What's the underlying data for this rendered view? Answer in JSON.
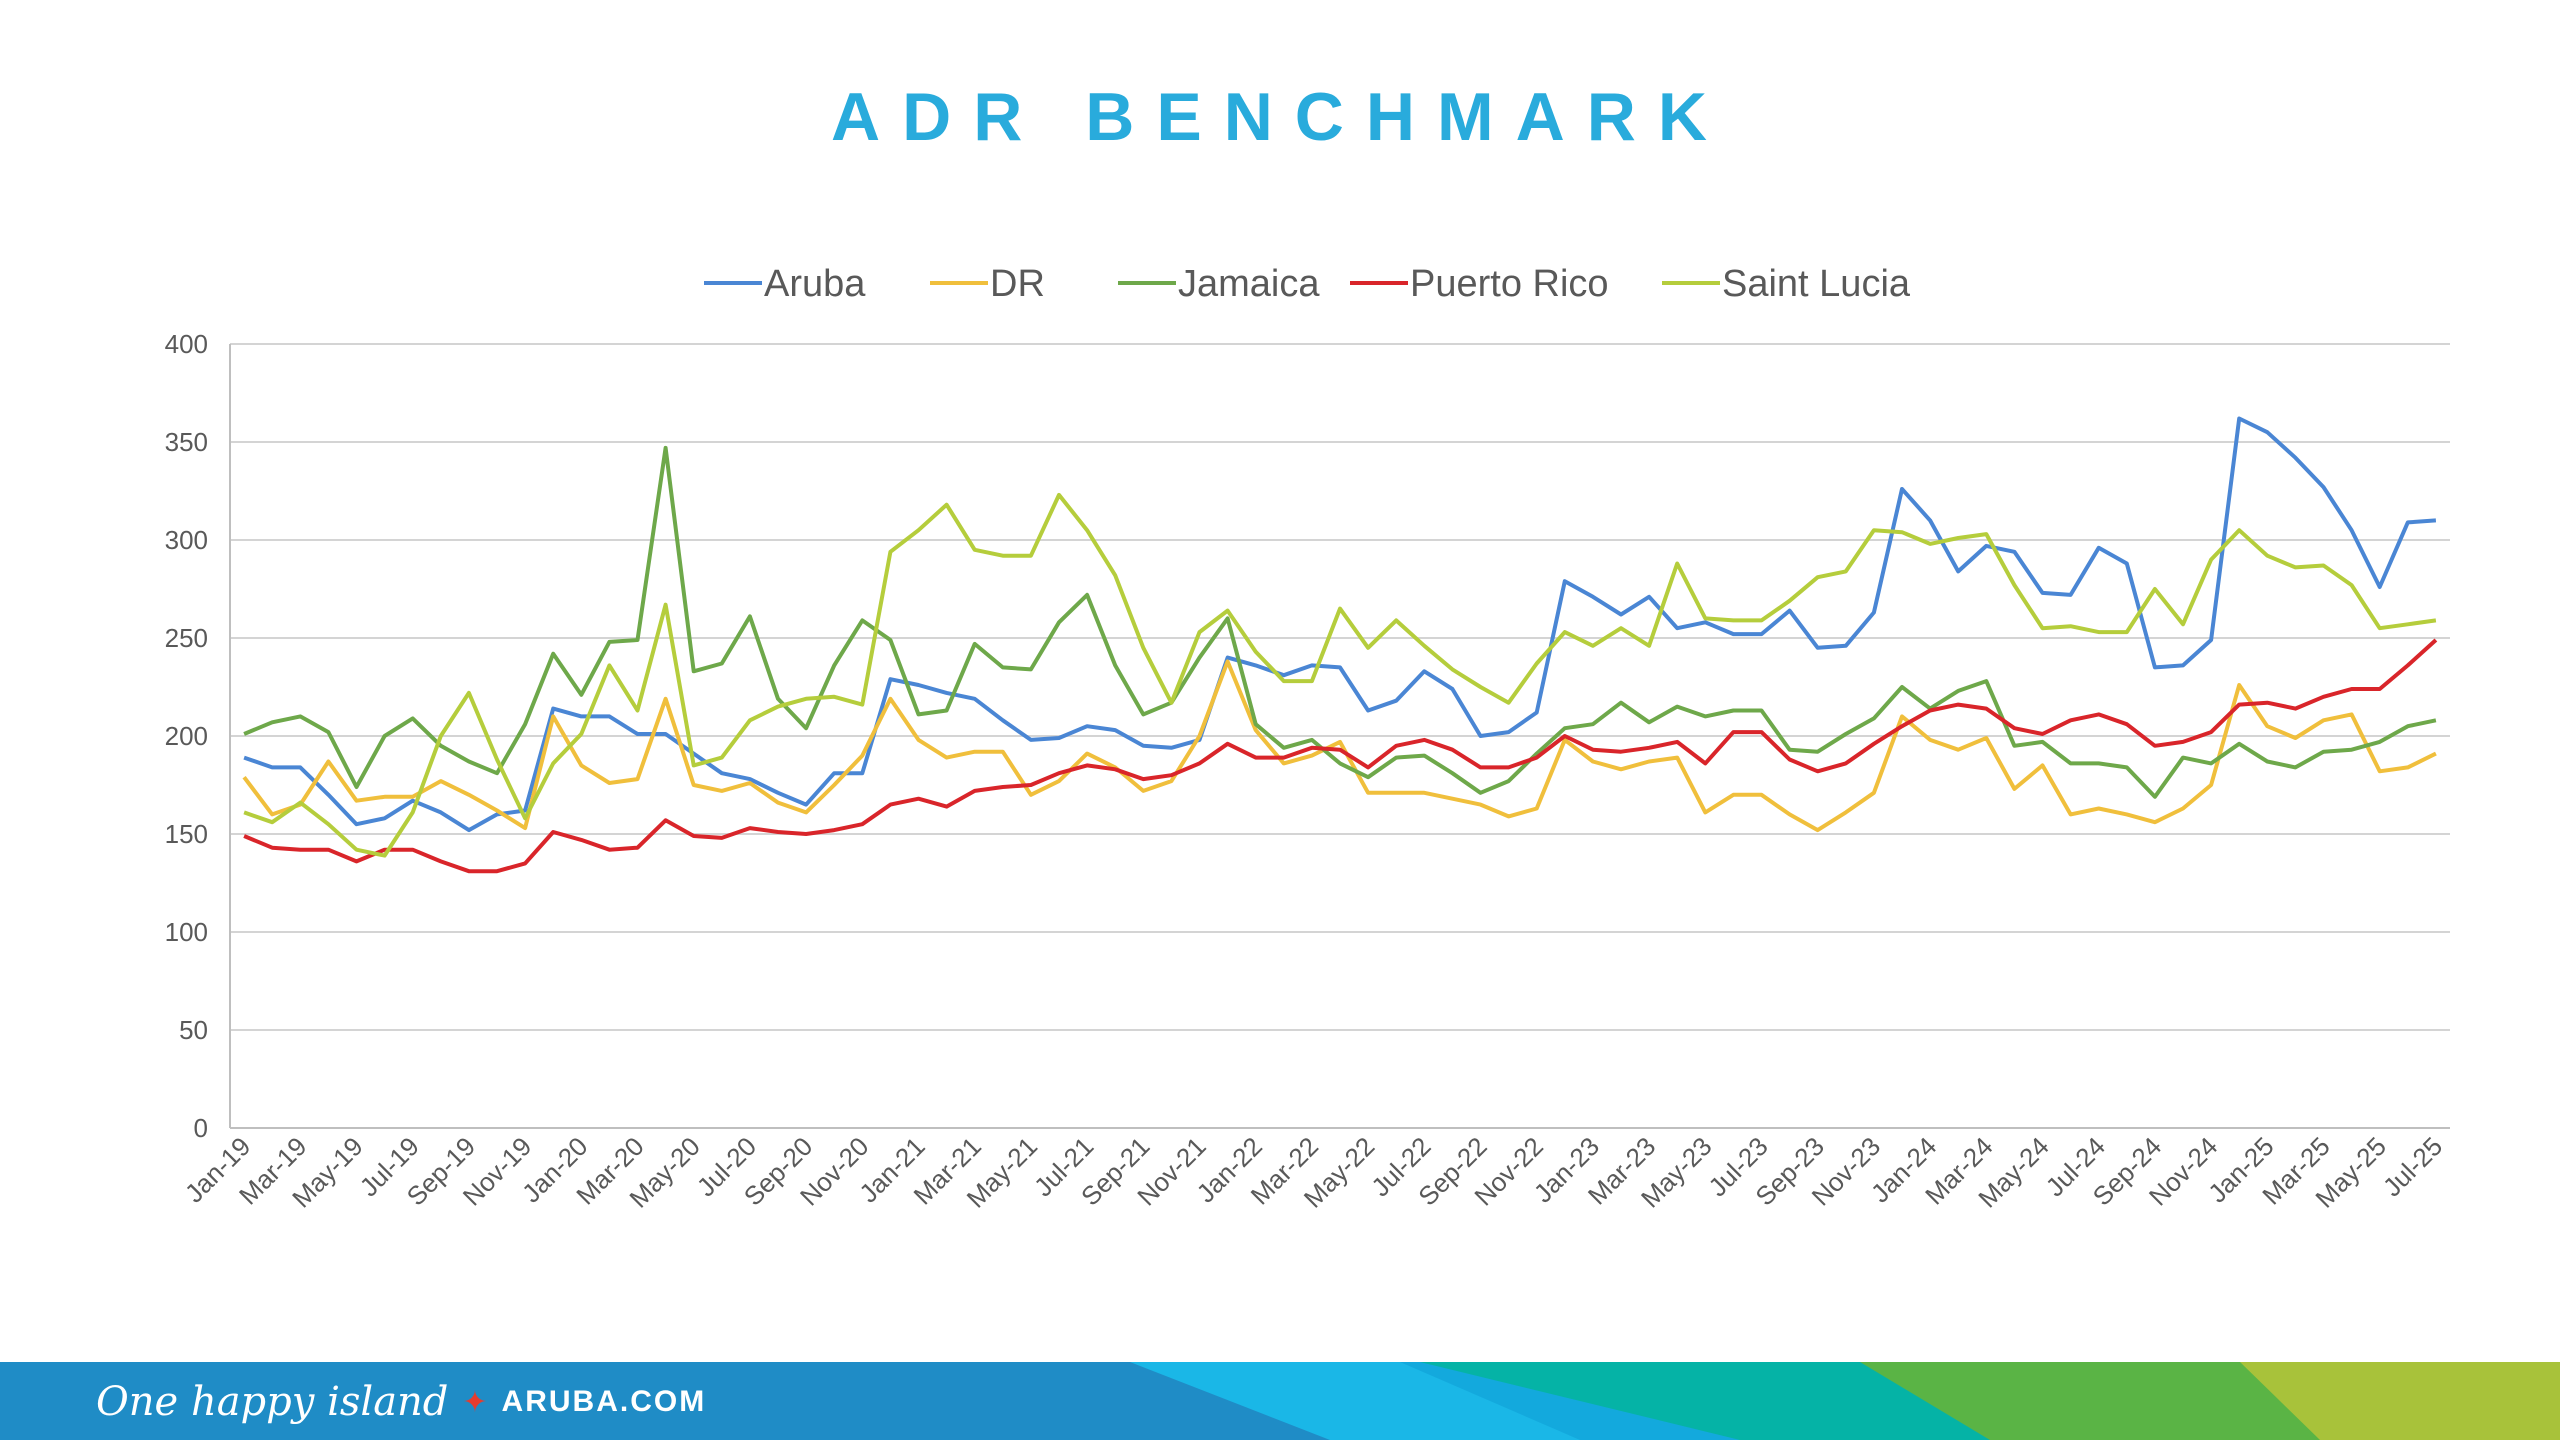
{
  "title": "ADR BENCHMARK",
  "footer": {
    "tagline": "One happy island",
    "site": "ARUBA.COM"
  },
  "chart_data": {
    "type": "line",
    "title": "ADR BENCHMARK",
    "xlabel": "",
    "ylabel": "",
    "ylim": [
      0,
      400
    ],
    "yticks": [
      0,
      50,
      100,
      150,
      200,
      250,
      300,
      350,
      400
    ],
    "grid": true,
    "legend": "top",
    "x_tick_labels": [
      "Jan-19",
      "Mar-19",
      "May-19",
      "Jul-19",
      "Sep-19",
      "Nov-19",
      "Jan-20",
      "Mar-20",
      "May-20",
      "Jul-20",
      "Sep-20",
      "Nov-20",
      "Jan-21",
      "Mar-21",
      "May-21",
      "Jul-21",
      "Sep-21",
      "Nov-21",
      "Jan-22",
      "Mar-22",
      "May-22",
      "Jul-22",
      "Sep-22",
      "Nov-22",
      "Jan-23",
      "Mar-23",
      "May-23",
      "Jul-23",
      "Sep-23",
      "Nov-23",
      "Jan-24",
      "Mar-24",
      "May-24",
      "Jul-24",
      "Sep-24",
      "Nov-24",
      "Jan-25",
      "Mar-25",
      "May-25",
      "Jul-25"
    ],
    "series": [
      {
        "name": "Aruba",
        "color": "#4a86d4",
        "values": [
          189,
          184,
          184,
          170,
          155,
          158,
          167,
          161,
          152,
          160,
          162,
          214,
          210,
          210,
          201,
          201,
          191,
          181,
          178,
          171,
          165,
          181,
          181,
          229,
          226,
          222,
          219,
          208,
          198,
          199,
          205,
          203,
          195,
          194,
          198,
          240,
          236,
          231,
          236,
          235,
          213,
          218,
          233,
          224,
          200,
          202,
          212,
          279,
          271,
          262,
          271,
          255,
          258,
          252,
          252,
          264,
          245,
          246,
          263,
          326,
          310,
          284,
          297,
          294,
          273,
          272,
          296,
          288,
          235,
          236,
          249,
          362,
          355,
          342,
          327,
          305,
          276,
          309,
          310
        ]
      },
      {
        "name": "DR",
        "color": "#f0bf3c",
        "values": [
          179,
          160,
          165,
          187,
          167,
          169,
          169,
          177,
          170,
          162,
          153,
          210,
          185,
          176,
          178,
          219,
          175,
          172,
          176,
          166,
          161,
          175,
          190,
          219,
          198,
          189,
          192,
          192,
          170,
          177,
          191,
          184,
          172,
          177,
          200,
          238,
          203,
          186,
          190,
          197,
          171,
          171,
          171,
          168,
          165,
          159,
          163,
          198,
          187,
          183,
          187,
          189,
          161,
          170,
          170,
          160,
          152,
          161,
          171,
          210,
          198,
          193,
          199,
          173,
          185,
          160,
          163,
          160,
          156,
          163,
          175,
          226,
          205,
          199,
          208,
          211,
          182,
          184,
          191
        ]
      },
      {
        "name": "Jamaica",
        "color": "#6ea84a",
        "values": [
          201,
          207,
          210,
          202,
          174,
          200,
          209,
          195,
          187,
          181,
          206,
          242,
          221,
          248,
          249,
          347,
          233,
          237,
          261,
          219,
          204,
          236,
          259,
          249,
          211,
          213,
          247,
          235,
          234,
          258,
          272,
          236,
          211,
          217,
          240,
          260,
          206,
          194,
          198,
          186,
          179,
          189,
          190,
          181,
          171,
          177,
          191,
          204,
          206,
          217,
          207,
          215,
          210,
          213,
          213,
          193,
          192,
          201,
          209,
          225,
          214,
          223,
          228,
          195,
          197,
          186,
          186,
          184,
          169,
          189,
          186,
          196,
          187,
          184,
          192,
          193,
          197,
          205,
          208
        ]
      },
      {
        "name": "Puerto Rico",
        "color": "#d9252a",
        "values": [
          149,
          143,
          142,
          142,
          136,
          142,
          142,
          136,
          131,
          131,
          135,
          151,
          147,
          142,
          143,
          157,
          149,
          148,
          153,
          151,
          150,
          152,
          155,
          165,
          168,
          164,
          172,
          174,
          175,
          181,
          185,
          183,
          178,
          180,
          186,
          196,
          189,
          189,
          194,
          193,
          184,
          195,
          198,
          193,
          184,
          184,
          189,
          200,
          193,
          192,
          194,
          197,
          186,
          202,
          202,
          188,
          182,
          186,
          196,
          205,
          213,
          216,
          214,
          204,
          201,
          208,
          211,
          206,
          195,
          197,
          202,
          216,
          217,
          214,
          220,
          224,
          224,
          236,
          249
        ]
      },
      {
        "name": "Saint Lucia",
        "color": "#b5cd3c",
        "values": [
          161,
          156,
          166,
          155,
          142,
          139,
          161,
          200,
          222,
          188,
          158,
          186,
          201,
          236,
          213,
          267,
          185,
          189,
          208,
          215,
          219,
          220,
          216,
          294,
          305,
          318,
          295,
          292,
          292,
          323,
          305,
          282,
          245,
          217,
          253,
          264,
          243,
          228,
          228,
          265,
          245,
          259,
          246,
          234,
          225,
          217,
          237,
          253,
          246,
          255,
          246,
          288,
          260,
          259,
          259,
          269,
          281,
          284,
          305,
          304,
          298,
          301,
          303,
          277,
          255,
          256,
          253,
          253,
          275,
          257,
          290,
          305,
          292,
          286,
          287,
          277,
          255,
          257,
          259
        ]
      }
    ]
  }
}
